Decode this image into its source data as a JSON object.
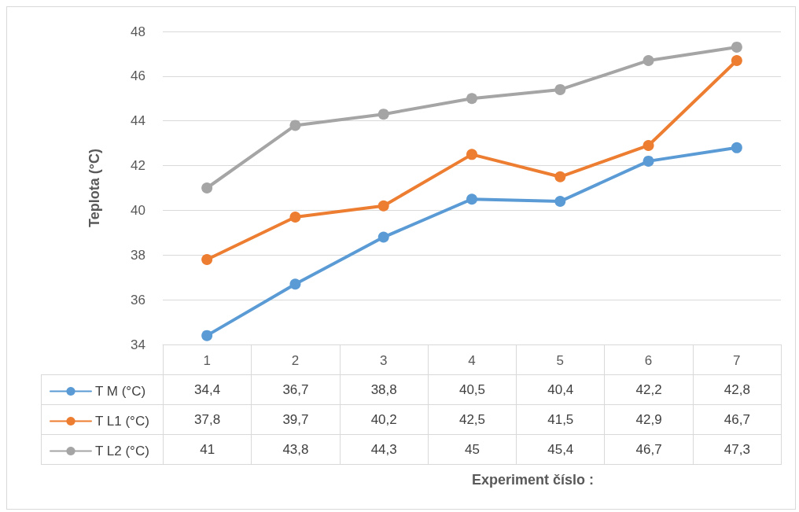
{
  "chart_data": {
    "type": "line",
    "annotations": [
      "Experiment číslo :"
    ],
    "ylabel": "Teplota (°C)",
    "categories": [
      "1",
      "2",
      "3",
      "4",
      "5",
      "6",
      "7"
    ],
    "series": [
      {
        "name": "T M (°C)",
        "color": "#5b9bd5",
        "values": [
          34.4,
          36.7,
          38.8,
          40.5,
          40.4,
          42.2,
          42.8
        ],
        "value_labels": [
          "34,4",
          "36,7",
          "38,8",
          "40,5",
          "40,4",
          "42,2",
          "42,8"
        ]
      },
      {
        "name": "T L1 (°C)",
        "color": "#ed7d31",
        "values": [
          37.8,
          39.7,
          40.2,
          42.5,
          41.5,
          42.9,
          46.7
        ],
        "value_labels": [
          "37,8",
          "39,7",
          "40,2",
          "42,5",
          "41,5",
          "42,9",
          "46,7"
        ]
      },
      {
        "name": "T L2 (°C)",
        "color": "#a5a5a5",
        "values": [
          41,
          43.8,
          44.3,
          45,
          45.4,
          46.7,
          47.3
        ],
        "value_labels": [
          "41",
          "43,8",
          "44,3",
          "45",
          "45,4",
          "46,7",
          "47,3"
        ]
      }
    ],
    "ylim": [
      34,
      48
    ],
    "yticks": [
      34,
      36,
      38,
      40,
      42,
      44,
      46,
      48
    ],
    "grid": "y",
    "legend": "bottom left",
    "marker": "circle",
    "line_style": "solid"
  }
}
